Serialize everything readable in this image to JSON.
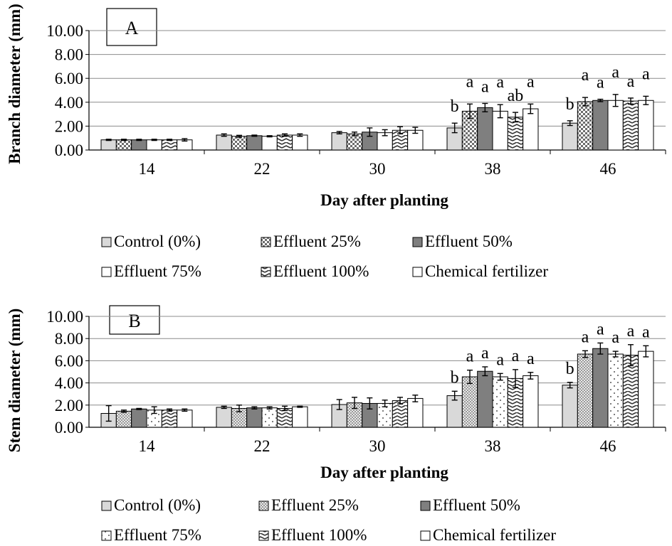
{
  "colors": {
    "control": "#d9d9d9",
    "e25": "#9b9b9b",
    "e50": "#7f7f7f",
    "e75": "#ffffff",
    "e100": "#ffffff",
    "chemical": "#ffffff",
    "axis": "#000000",
    "grid": "#8c8c8c"
  },
  "chart_data": [
    {
      "type": "bar",
      "panel_label": "A",
      "ylabel": "Branch diameter (mm)",
      "xlabel": "Day after planting",
      "ylim": [
        0,
        10
      ],
      "yticks": [
        "0.00",
        "2.00",
        "4.00",
        "6.00",
        "8.00",
        "10.00"
      ],
      "categories": [
        "14",
        "22",
        "30",
        "38",
        "46"
      ],
      "grid": true,
      "legend_position": "below",
      "series": [
        {
          "name": "Control (0%)",
          "key": "control",
          "values": [
            0.85,
            1.25,
            1.45,
            1.85,
            2.25
          ],
          "errors": [
            0.05,
            0.1,
            0.1,
            0.4,
            0.2
          ],
          "letters": [
            "",
            "",
            "",
            "b",
            "b"
          ]
        },
        {
          "name": "Effluent 25%",
          "key": "e25",
          "values": [
            0.85,
            1.15,
            1.35,
            3.25,
            4.05
          ],
          "errors": [
            0.05,
            0.08,
            0.15,
            0.6,
            0.35
          ],
          "letters": [
            "",
            "",
            "",
            "a",
            "a"
          ]
        },
        {
          "name": "Effluent 50%",
          "key": "e50",
          "values": [
            0.85,
            1.2,
            1.5,
            3.55,
            4.15
          ],
          "errors": [
            0.05,
            0.05,
            0.35,
            0.35,
            0.1
          ],
          "letters": [
            "",
            "",
            "",
            "a",
            "a"
          ]
        },
        {
          "name": "Effluent 75%",
          "key": "e75",
          "values": [
            0.85,
            1.15,
            1.45,
            3.25,
            4.15
          ],
          "errors": [
            0.05,
            0.05,
            0.25,
            0.55,
            0.5
          ],
          "letters": [
            "",
            "",
            "",
            "a",
            "a"
          ]
        },
        {
          "name": "Effluent 100%",
          "key": "e100",
          "values": [
            0.85,
            1.25,
            1.65,
            2.75,
            4.1
          ],
          "errors": [
            0.05,
            0.1,
            0.3,
            0.4,
            0.25
          ],
          "letters": [
            "",
            "",
            "",
            "ab",
            "a"
          ]
        },
        {
          "name": "Chemical fertilizer",
          "key": "chemical",
          "values": [
            0.85,
            1.25,
            1.65,
            3.45,
            4.15
          ],
          "errors": [
            0.1,
            0.1,
            0.25,
            0.4,
            0.35
          ],
          "letters": [
            "",
            "",
            "",
            "a",
            "a"
          ]
        }
      ]
    },
    {
      "type": "bar",
      "panel_label": "B",
      "ylabel": "Stem diameter (mm)",
      "xlabel": "Day after planting",
      "ylim": [
        0,
        10
      ],
      "yticks": [
        "0.00",
        "2.00",
        "4.00",
        "6.00",
        "8.00",
        "10.00"
      ],
      "categories": [
        "14",
        "22",
        "30",
        "38",
        "46"
      ],
      "grid": true,
      "legend_position": "below",
      "series": [
        {
          "name": "Control (0%)",
          "key": "control",
          "values": [
            1.25,
            1.8,
            2.05,
            2.85,
            3.8
          ],
          "errors": [
            0.7,
            0.1,
            0.45,
            0.4,
            0.25
          ],
          "letters": [
            "",
            "",
            "",
            "b",
            "b"
          ]
        },
        {
          "name": "Effluent 25%",
          "key": "e25",
          "values": [
            1.45,
            1.7,
            2.2,
            4.55,
            6.6
          ],
          "errors": [
            0.1,
            0.3,
            0.5,
            0.6,
            0.3
          ],
          "letters": [
            "",
            "",
            "",
            "a",
            "a"
          ]
        },
        {
          "name": "Effluent 50%",
          "key": "e50",
          "values": [
            1.65,
            1.75,
            2.15,
            5.05,
            7.1
          ],
          "errors": [
            0.05,
            0.1,
            0.5,
            0.4,
            0.5
          ],
          "letters": [
            "",
            "",
            "",
            "a",
            "a"
          ]
        },
        {
          "name": "Effluent 75%",
          "key": "e75",
          "values": [
            1.55,
            1.75,
            2.15,
            4.55,
            6.6
          ],
          "errors": [
            0.3,
            0.1,
            0.3,
            0.3,
            0.25
          ],
          "letters": [
            "",
            "",
            "",
            "a",
            "a"
          ]
        },
        {
          "name": "Effluent 100%",
          "key": "e100",
          "values": [
            1.55,
            1.7,
            2.4,
            4.4,
            6.5
          ],
          "errors": [
            0.1,
            0.2,
            0.3,
            0.8,
            0.95
          ],
          "letters": [
            "",
            "",
            "",
            "a",
            "a"
          ]
        },
        {
          "name": "Chemical fertilizer",
          "key": "chemical",
          "values": [
            1.55,
            1.85,
            2.6,
            4.65,
            6.85
          ],
          "errors": [
            0.1,
            0.05,
            0.3,
            0.3,
            0.5
          ],
          "letters": [
            "",
            "",
            "",
            "a",
            "a"
          ]
        }
      ]
    }
  ]
}
